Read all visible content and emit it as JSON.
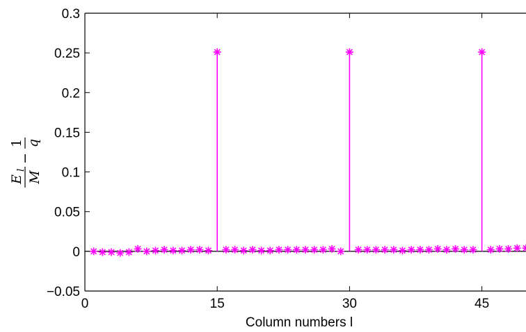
{
  "chart_data": {
    "type": "scatter",
    "title": "",
    "xlabel": "Column numbers l",
    "ylabel": {
      "term1_num": "E",
      "term1_sub": "l",
      "term1_den": "M",
      "minus": "−",
      "term2_num": "1",
      "term2_den": "q"
    },
    "xlim": [
      0,
      50
    ],
    "ylim": [
      -0.05,
      0.3
    ],
    "xticks": [
      0,
      15,
      30,
      45
    ],
    "xtick_labels": [
      "0",
      "15",
      "30",
      "45"
    ],
    "yticks": [
      -0.05,
      0,
      0.05,
      0.1,
      0.15,
      0.2,
      0.25,
      0.3
    ],
    "ytick_labels": [
      "−0.05",
      "0",
      "0.05",
      "0.1",
      "0.15",
      "0.2",
      "0.25",
      "0.3"
    ],
    "grid": false,
    "marker": "asterisk",
    "stem_lines": true,
    "zero_line": true,
    "color": "#ff00ff",
    "series": [
      {
        "x": [
          1,
          2,
          3,
          4,
          5,
          6,
          7,
          8,
          9,
          10,
          11,
          12,
          13,
          14,
          15,
          16,
          17,
          18,
          19,
          20,
          21,
          22,
          23,
          24,
          25,
          26,
          27,
          28,
          29,
          30,
          31,
          32,
          33,
          34,
          35,
          36,
          37,
          38,
          39,
          40,
          41,
          42,
          43,
          44,
          45,
          46,
          47,
          48,
          49,
          50
        ],
        "values": [
          0.0,
          -0.001,
          -0.001,
          -0.002,
          -0.001,
          0.003,
          0.0,
          0.001,
          0.002,
          0.001,
          0.001,
          0.002,
          0.002,
          0.001,
          0.251,
          0.002,
          0.002,
          0.001,
          0.002,
          0.001,
          0.001,
          0.002,
          0.002,
          0.002,
          0.002,
          0.002,
          0.002,
          0.003,
          0.0,
          0.251,
          0.002,
          0.002,
          0.002,
          0.002,
          0.002,
          0.001,
          0.002,
          0.002,
          0.002,
          0.003,
          0.002,
          0.003,
          0.002,
          0.002,
          0.251,
          0.002,
          0.003,
          0.003,
          0.004,
          0.004
        ]
      }
    ]
  }
}
